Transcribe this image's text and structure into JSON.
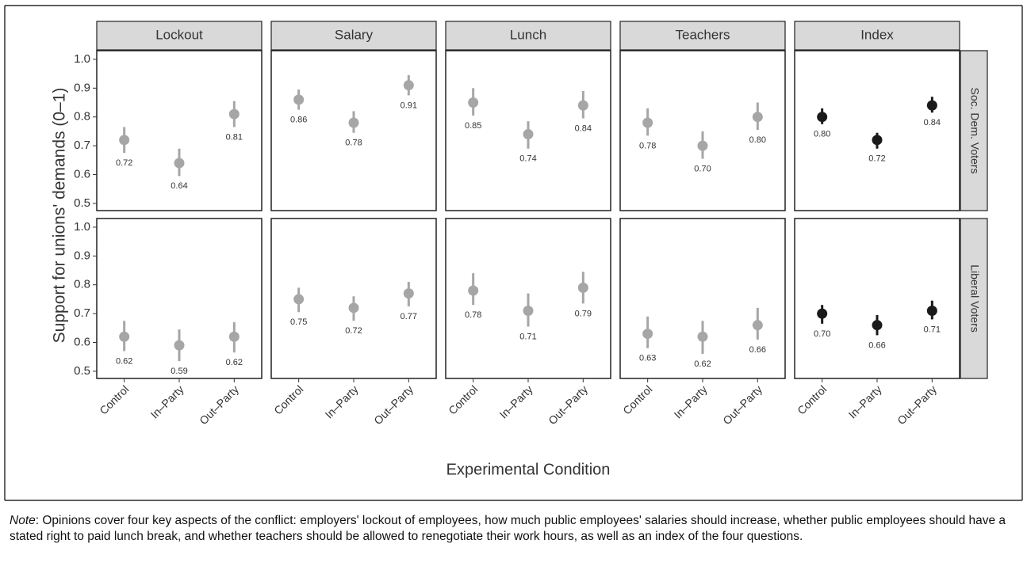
{
  "chart_data": {
    "type": "dot-errorbar",
    "ylabel": "Support for unions' demands (0–1)",
    "xlabel": "Experimental Condition",
    "categories": [
      "Control",
      "In–Party",
      "Out–Party"
    ],
    "ylim": [
      0.475,
      1.03
    ],
    "yticks": [
      0.5,
      0.6,
      0.7,
      0.8,
      0.9,
      {
        "value": 1,
        "label": "1.0"
      }
    ],
    "columns": [
      {
        "name": "Lockout",
        "color": "#a6a6a6"
      },
      {
        "name": "Salary",
        "color": "#a6a6a6"
      },
      {
        "name": "Lunch",
        "color": "#a6a6a6"
      },
      {
        "name": "Teachers",
        "color": "#a6a6a6"
      },
      {
        "name": "Index",
        "color": "#1a1a1a"
      }
    ],
    "rows": [
      {
        "name": "Soc. Dem. Voters",
        "panels": [
          {
            "values": [
              0.72,
              0.64,
              0.81
            ],
            "value_labels": [
              "0.72",
              "0.64",
              "0.81"
            ],
            "low": [
              0.675,
              0.595,
              0.765
            ],
            "high": [
              0.765,
              0.69,
              0.855
            ]
          },
          {
            "values": [
              0.86,
              0.78,
              0.91
            ],
            "value_labels": [
              "0.86",
              "0.78",
              "0.91"
            ],
            "low": [
              0.825,
              0.745,
              0.875
            ],
            "high": [
              0.895,
              0.82,
              0.945
            ]
          },
          {
            "values": [
              0.85,
              0.74,
              0.84
            ],
            "value_labels": [
              "0.85",
              "0.74",
              "0.84"
            ],
            "low": [
              0.805,
              0.69,
              0.795
            ],
            "high": [
              0.9,
              0.785,
              0.89
            ]
          },
          {
            "values": [
              0.78,
              0.7,
              0.8
            ],
            "value_labels": [
              "0.78",
              "0.70",
              "0.80"
            ],
            "low": [
              0.735,
              0.655,
              0.755
            ],
            "high": [
              0.83,
              0.75,
              0.85
            ]
          },
          {
            "values": [
              0.8,
              0.72,
              0.84
            ],
            "value_labels": [
              "0.80",
              "0.72",
              "0.84"
            ],
            "low": [
              0.775,
              0.69,
              0.815
            ],
            "high": [
              0.83,
              0.745,
              0.87
            ]
          }
        ]
      },
      {
        "name": "Liberal Voters",
        "panels": [
          {
            "values": [
              0.62,
              0.59,
              0.62
            ],
            "value_labels": [
              "0.62",
              "0.59",
              "0.62"
            ],
            "low": [
              0.57,
              0.535,
              0.565
            ],
            "high": [
              0.675,
              0.645,
              0.67
            ]
          },
          {
            "values": [
              0.75,
              0.72,
              0.77
            ],
            "value_labels": [
              "0.75",
              "0.72",
              "0.77"
            ],
            "low": [
              0.705,
              0.675,
              0.725
            ],
            "high": [
              0.79,
              0.76,
              0.81
            ]
          },
          {
            "values": [
              0.78,
              0.71,
              0.79
            ],
            "value_labels": [
              "0.78",
              "0.71",
              "0.79"
            ],
            "low": [
              0.73,
              0.655,
              0.735
            ],
            "high": [
              0.84,
              0.77,
              0.845
            ]
          },
          {
            "values": [
              0.63,
              0.62,
              0.66
            ],
            "value_labels": [
              "0.63",
              "0.62",
              "0.66"
            ],
            "low": [
              0.58,
              0.56,
              0.61
            ],
            "high": [
              0.69,
              0.675,
              0.72
            ]
          },
          {
            "values": [
              0.7,
              0.66,
              0.71
            ],
            "value_labels": [
              "0.70",
              "0.66",
              "0.71"
            ],
            "low": [
              0.665,
              0.625,
              0.68
            ],
            "high": [
              0.73,
              0.695,
              0.745
            ]
          }
        ]
      }
    ]
  },
  "note_label": "Note",
  "note_text": ": Opinions cover four key aspects of the conflict: employers' lockout of employees, how much public employees' salaries should increase, whether public employees should have a stated right to paid lunch break, and whether teachers should be allowed to renegotiate their work hours, as well as an index of the four questions."
}
